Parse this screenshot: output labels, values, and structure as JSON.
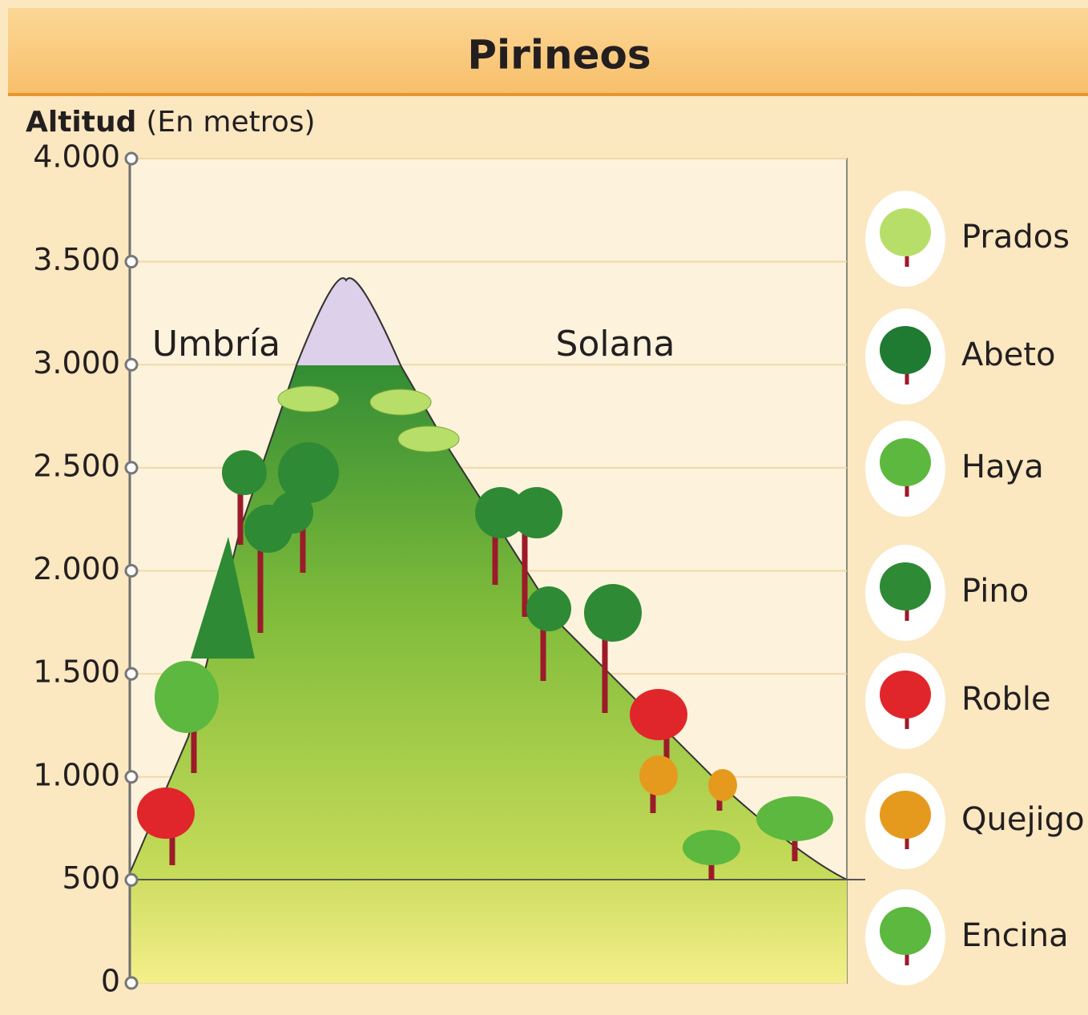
{
  "header": {
    "title": "Pirineos"
  },
  "axis": {
    "label_bold": "Altitud",
    "label_rest": "(En metros)",
    "ylim": [
      0,
      4000
    ],
    "ticks": [
      {
        "value": 0,
        "label": "0"
      },
      {
        "value": 500,
        "label": "500"
      },
      {
        "value": 1000,
        "label": "1.000"
      },
      {
        "value": 1500,
        "label": "1.500"
      },
      {
        "value": 2000,
        "label": "2.000"
      },
      {
        "value": 2500,
        "label": "2.500"
      },
      {
        "value": 3000,
        "label": "3.000"
      },
      {
        "value": 3500,
        "label": "3.500"
      },
      {
        "value": 4000,
        "label": "4.000"
      }
    ]
  },
  "sides": {
    "left": "Umbría",
    "right": "Solana"
  },
  "legend": [
    "Prados",
    "Abeto",
    "Haya",
    "Pino",
    "Roble",
    "Quejigo",
    "Encina"
  ]
}
